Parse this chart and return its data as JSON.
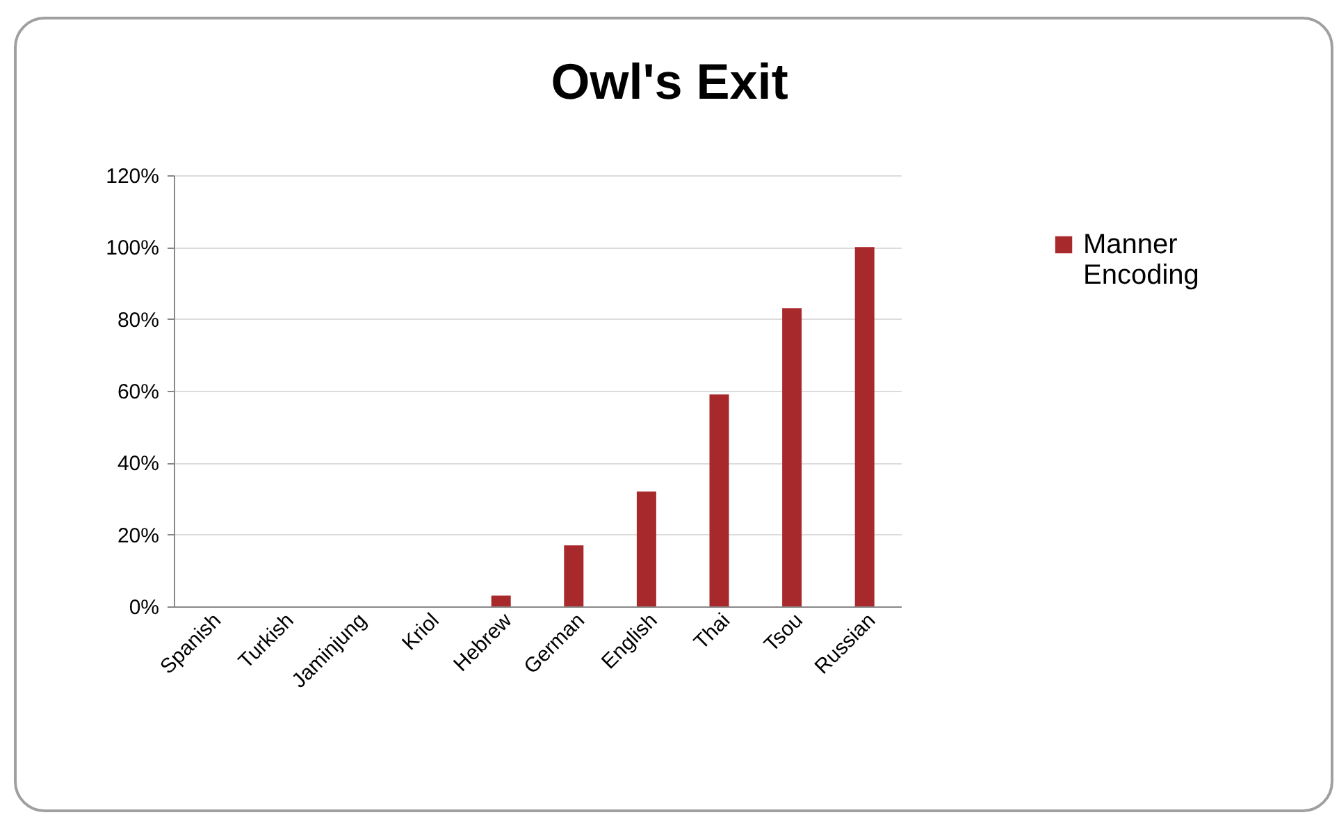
{
  "chart_data": {
    "type": "bar",
    "title": "Owl's Exit",
    "categories": [
      "Spanish",
      "Turkish",
      "Jaminjung",
      "Kriol",
      "Hebrew",
      "German",
      "English",
      "Thai",
      "Tsou",
      "Russian"
    ],
    "series": [
      {
        "name": "Manner Encoding",
        "color": "#a8292b",
        "values": [
          0,
          0,
          0,
          0,
          3,
          17,
          32,
          59,
          83,
          100
        ]
      }
    ],
    "ylim": [
      0,
      120
    ],
    "yticks": [
      {
        "value": 0,
        "label": "0%"
      },
      {
        "value": 20,
        "label": "20%"
      },
      {
        "value": 40,
        "label": "40%"
      },
      {
        "value": 60,
        "label": "60%"
      },
      {
        "value": 80,
        "label": "80%"
      },
      {
        "value": 100,
        "label": "100%"
      },
      {
        "value": 120,
        "label": "120%"
      }
    ],
    "grid": "y",
    "legend": "right"
  }
}
